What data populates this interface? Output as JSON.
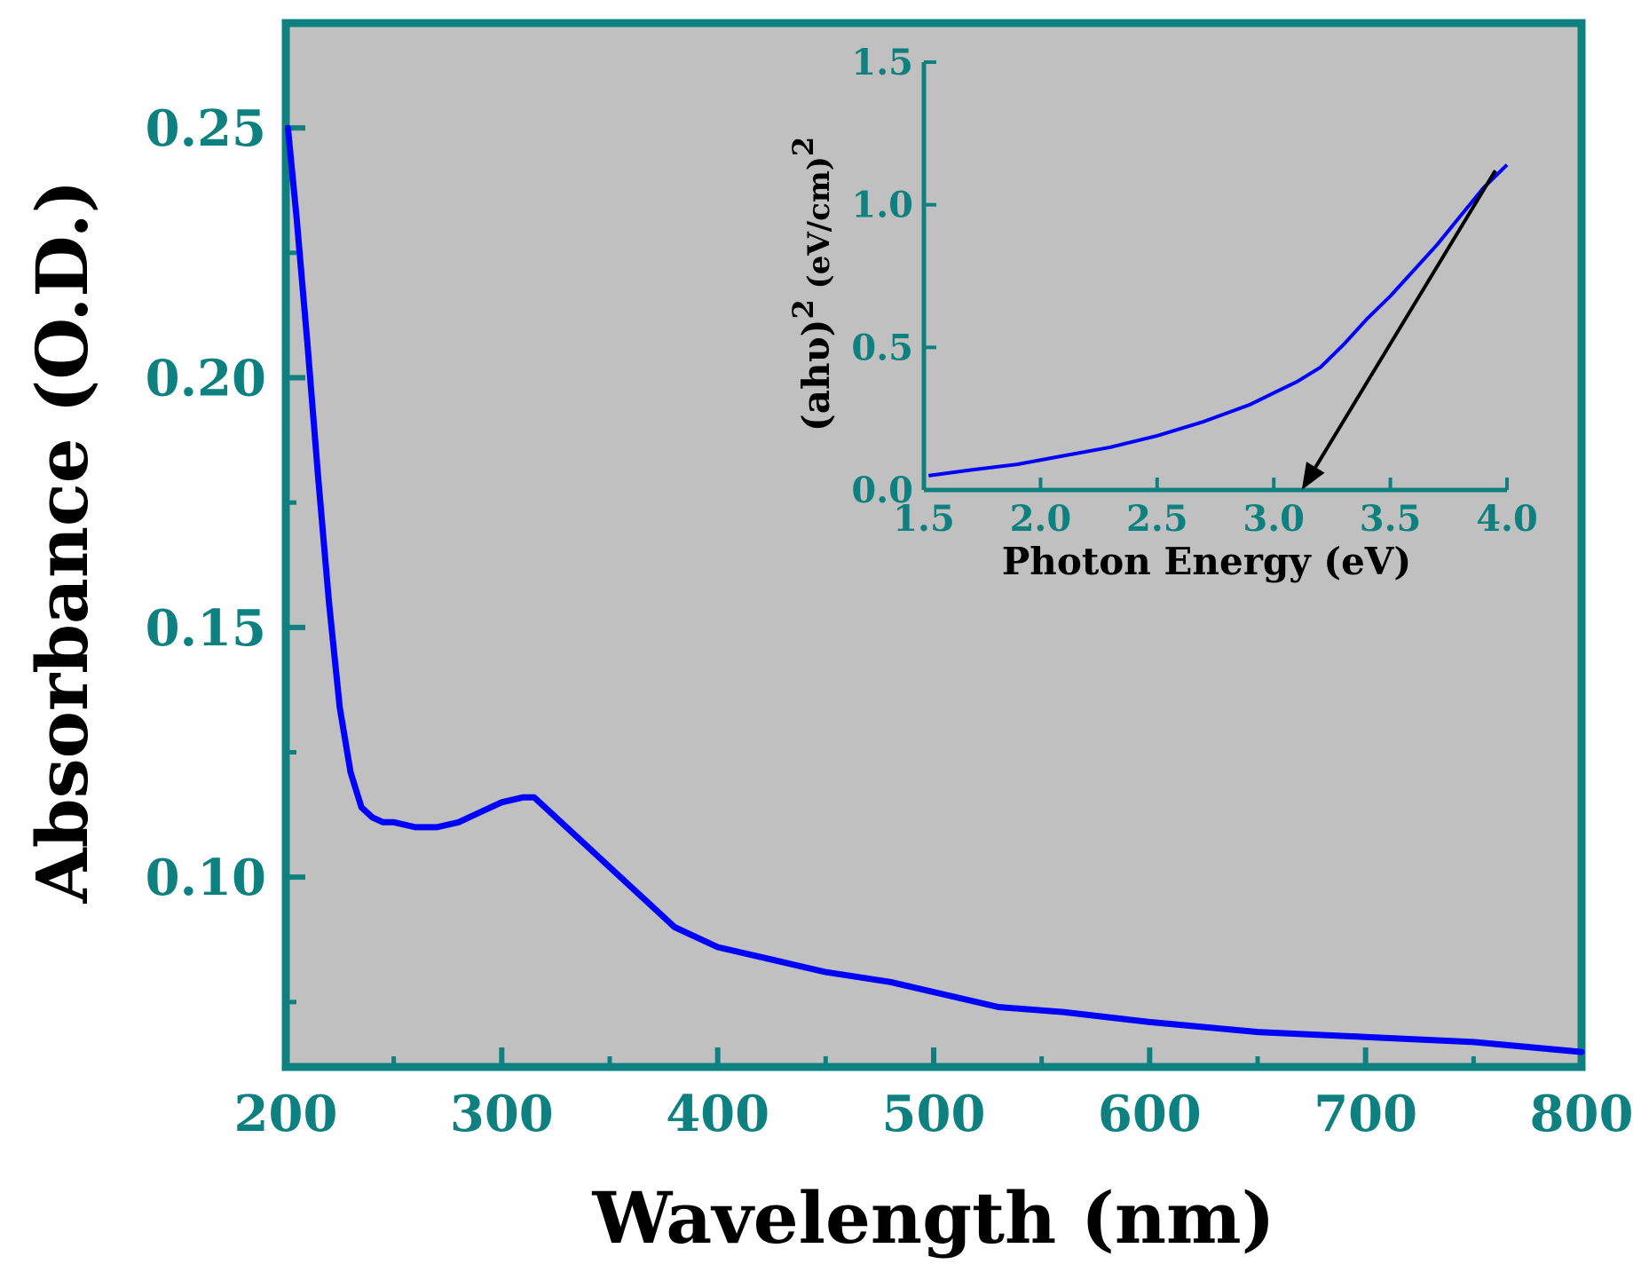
{
  "colors": {
    "plot_bg": "#c0c0c0",
    "axis": "#0f8080",
    "tick_label": "#0f8080",
    "series": "#0000ff",
    "arrow": "#000000"
  },
  "chart_data": [
    {
      "type": "line",
      "title": "",
      "xlabel": "Wavelength (nm)",
      "ylabel": "Absorbance (O.D.)",
      "xlim": [
        200,
        800
      ],
      "ylim": [
        0.062,
        0.271
      ],
      "xticks": [
        200,
        300,
        400,
        500,
        600,
        700,
        800
      ],
      "xtick_labels": [
        "200",
        "300",
        "400",
        "500",
        "600",
        "700",
        "800"
      ],
      "yticks": [
        0.1,
        0.15,
        0.2,
        0.25
      ],
      "ytick_labels": [
        "0.10",
        "0.15",
        "0.20",
        "0.25"
      ],
      "grid": false,
      "legend": "none",
      "series": [
        {
          "x": [
            201,
            205,
            210,
            215,
            220,
            225,
            230,
            235,
            240,
            245,
            250,
            260,
            270,
            280,
            290,
            300,
            310,
            315,
            320,
            330,
            340,
            350,
            360,
            370,
            380,
            390,
            400,
            420,
            450,
            480,
            500,
            530,
            560,
            600,
            650,
            700,
            750,
            800
          ],
          "y": [
            0.25,
            0.232,
            0.207,
            0.18,
            0.155,
            0.134,
            0.121,
            0.114,
            0.112,
            0.111,
            0.111,
            0.11,
            0.11,
            0.111,
            0.113,
            0.115,
            0.116,
            0.116,
            0.114,
            0.11,
            0.106,
            0.102,
            0.098,
            0.094,
            0.09,
            0.088,
            0.086,
            0.084,
            0.081,
            0.079,
            0.077,
            0.074,
            0.073,
            0.071,
            0.069,
            0.068,
            0.067,
            0.065
          ]
        }
      ]
    },
    {
      "type": "line",
      "title": "",
      "xlabel": "Photon Energy (eV)",
      "ylabel": "(ahυ)2 (eV/cm)2",
      "ylabel_parts": [
        "(ahυ)",
        "2",
        " (eV/cm)",
        "2"
      ],
      "xlim": [
        1.5,
        4.0
      ],
      "ylim": [
        0.0,
        1.5
      ],
      "xticks": [
        1.5,
        2.0,
        2.5,
        3.0,
        3.5,
        4.0
      ],
      "xtick_labels": [
        "1.5",
        "2.0",
        "2.5",
        "3.0",
        "3.5",
        "4.0"
      ],
      "yticks": [
        0.0,
        0.5,
        1.0,
        1.5
      ],
      "ytick_labels": [
        "0.0",
        "0.5",
        "1.0",
        "1.5"
      ],
      "grid": false,
      "legend": "none",
      "series": [
        {
          "x": [
            1.52,
            1.7,
            1.9,
            2.1,
            2.3,
            2.5,
            2.7,
            2.9,
            3.0,
            3.1,
            3.2,
            3.3,
            3.4,
            3.5,
            3.6,
            3.7,
            3.8,
            3.9,
            4.0
          ],
          "y": [
            0.05,
            0.07,
            0.09,
            0.12,
            0.15,
            0.19,
            0.24,
            0.3,
            0.34,
            0.38,
            0.43,
            0.51,
            0.6,
            0.68,
            0.77,
            0.86,
            0.96,
            1.06,
            1.14
          ]
        }
      ],
      "annotations": [
        {
          "type": "arrow",
          "from": [
            3.95,
            1.12
          ],
          "to": [
            3.12,
            0.0
          ]
        }
      ]
    }
  ]
}
